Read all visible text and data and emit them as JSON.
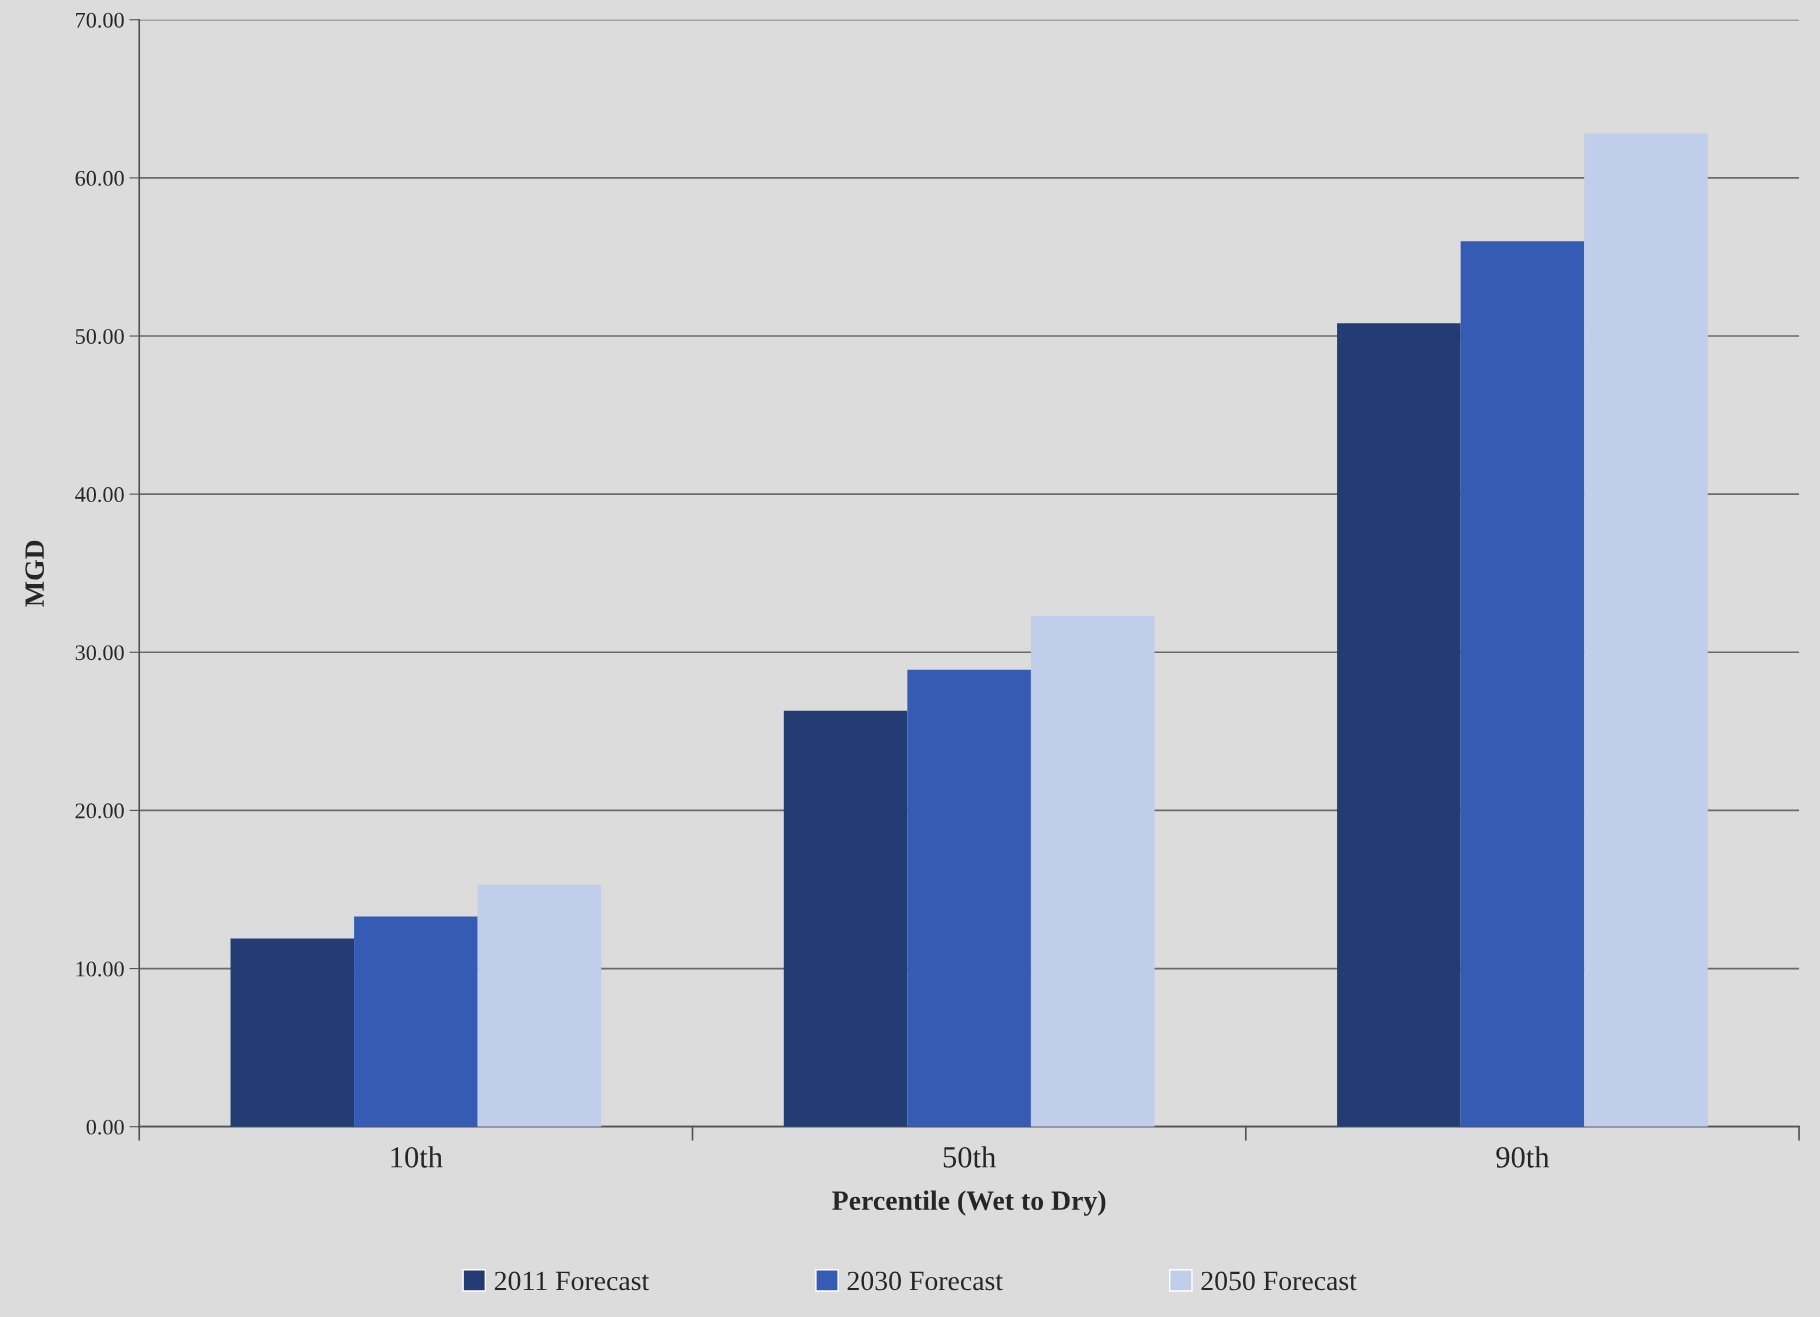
{
  "chart_data": {
    "type": "bar",
    "xlabel": "Percentile (Wet to Dry)",
    "ylabel": "MGD",
    "categories": [
      "10th",
      "50th",
      "90th"
    ],
    "series": [
      {
        "name": "2011 Forecast",
        "color": "#233c74",
        "values": [
          11.9,
          26.3,
          50.8
        ]
      },
      {
        "name": "2030 Forecast",
        "color": "#365bb4",
        "values": [
          13.3,
          28.9,
          56.0
        ]
      },
      {
        "name": "2050 Forecast",
        "color": "#c0ceeb",
        "values": [
          15.3,
          32.3,
          62.8
        ]
      }
    ],
    "ylim": [
      0,
      70
    ],
    "yticks": [
      {
        "value": 0,
        "label": "0.00"
      },
      {
        "value": 10,
        "label": "10.00"
      },
      {
        "value": 20,
        "label": "20.00"
      },
      {
        "value": 30,
        "label": "30.00"
      },
      {
        "value": 40,
        "label": "40.00"
      },
      {
        "value": 50,
        "label": "50.00"
      },
      {
        "value": 60,
        "label": "60.00"
      },
      {
        "value": 70,
        "label": "70.00"
      }
    ],
    "grid": "y",
    "legend": "bottom"
  }
}
